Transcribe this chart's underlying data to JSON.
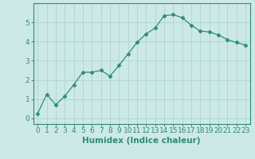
{
  "x": [
    0,
    1,
    2,
    3,
    4,
    5,
    6,
    7,
    8,
    9,
    10,
    11,
    12,
    13,
    14,
    15,
    16,
    17,
    18,
    19,
    20,
    21,
    22,
    23
  ],
  "y": [
    0.25,
    1.25,
    0.7,
    1.15,
    1.75,
    2.4,
    2.4,
    2.5,
    2.2,
    2.75,
    3.35,
    3.95,
    4.4,
    4.7,
    5.35,
    5.4,
    5.25,
    4.85,
    4.55,
    4.5,
    4.35,
    4.1,
    3.95,
    3.82
  ],
  "line_color": "#2e8b7a",
  "marker": "D",
  "marker_size": 2.5,
  "bg_color": "#cce9e5",
  "grid_color": "#b0d8d4",
  "xlabel": "Humidex (Indice chaleur)",
  "xlim": [
    -0.5,
    23.5
  ],
  "ylim": [
    -0.3,
    6.0
  ],
  "yticks": [
    0,
    1,
    2,
    3,
    4,
    5
  ],
  "xticks": [
    0,
    1,
    2,
    3,
    4,
    5,
    6,
    7,
    8,
    9,
    10,
    11,
    12,
    13,
    14,
    15,
    16,
    17,
    18,
    19,
    20,
    21,
    22,
    23
  ],
  "xlabel_fontsize": 7.5,
  "tick_fontsize": 6.5,
  "axis_color": "#2e8b7a",
  "spine_color": "#2e8b7a"
}
